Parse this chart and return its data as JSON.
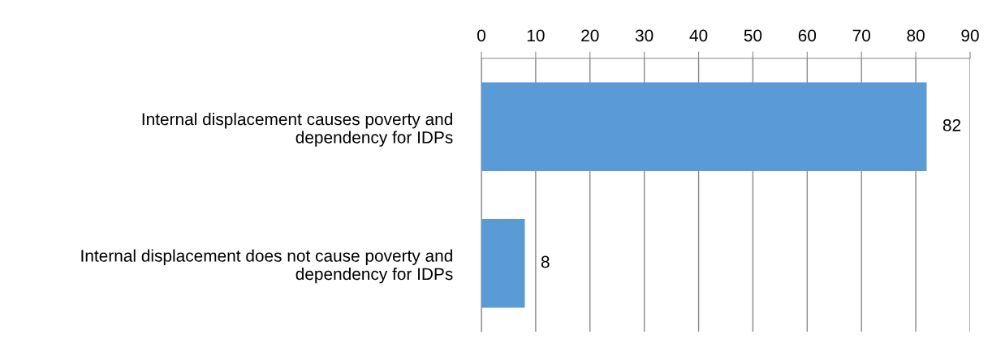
{
  "chart_data": {
    "type": "bar",
    "orientation": "horizontal",
    "categories": [
      "Internal displacement causes poverty and\ndependency for IDPs",
      "Internal displacement does not cause poverty and\ndependency for IDPs"
    ],
    "values": [
      82,
      8
    ],
    "color": "#5b9bd5",
    "xlim": [
      0,
      90
    ],
    "xticks": [
      0,
      10,
      20,
      30,
      40,
      50,
      60,
      70,
      80,
      90
    ],
    "grid": "x",
    "data_labels": true,
    "legend": false
  }
}
